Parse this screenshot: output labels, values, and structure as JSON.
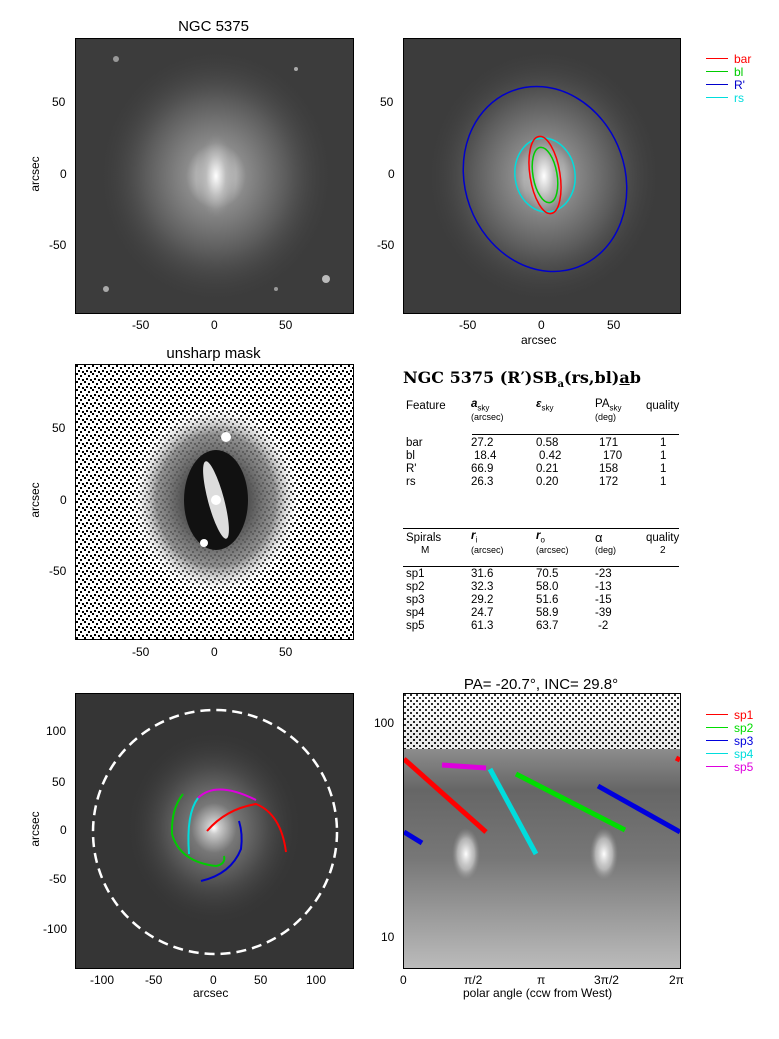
{
  "panels": {
    "top_left": {
      "title": "NGC 5375",
      "ylabel": "arcsec",
      "yticks": [
        "50",
        "0",
        "-50"
      ],
      "xticks": [
        "-50",
        "0",
        "50"
      ]
    },
    "top_right": {
      "xlabel": "arcsec",
      "yticks": [
        "50",
        "0",
        "-50"
      ],
      "xticks": [
        "-50",
        "0",
        "50"
      ],
      "legend": [
        {
          "label": "bar",
          "color": "#ff0000"
        },
        {
          "label": "bl",
          "color": "#00cc00"
        },
        {
          "label": "R'",
          "color": "#0000cc"
        },
        {
          "label": "rs",
          "color": "#00dddd"
        }
      ]
    },
    "mid_left": {
      "title": "unsharp mask",
      "ylabel": "arcsec",
      "yticks": [
        "50",
        "0",
        "-50"
      ],
      "xticks": [
        "-50",
        "0",
        "50"
      ]
    },
    "bottom_left": {
      "xlabel": "arcsec",
      "ylabel": "arcsec",
      "yticks": [
        "100",
        "50",
        "0",
        "-50",
        "-100"
      ],
      "xticks": [
        "-100",
        "-50",
        "0",
        "50",
        "100"
      ]
    },
    "bottom_right": {
      "title": "PA= -20.7°, INC=  29.8°",
      "xlabel": "polar angle (ccw from West)",
      "yticks": [
        "100",
        "10"
      ],
      "xticks": [
        "0",
        "π/2",
        "π",
        "3π/2",
        "2π"
      ],
      "legend": [
        {
          "label": "sp1",
          "color": "#ff0000"
        },
        {
          "label": "sp2",
          "color": "#00dd00"
        },
        {
          "label": "sp3",
          "color": "#0000dd"
        },
        {
          "label": "sp4",
          "color": "#00dddd"
        },
        {
          "label": "sp5",
          "color": "#dd00dd"
        }
      ]
    }
  },
  "classification": {
    "title": "NGC 5375  (R′)SB",
    "title_sub": "a",
    "title_rest": "(rs,bl)",
    "title_under": "a",
    "title_end": "b"
  },
  "features_table": {
    "headers": {
      "feature": "Feature",
      "a": "a",
      "a_sub": "sky",
      "a_unit": "(arcsec)",
      "eps": "ε",
      "eps_sub": "sky",
      "pa": "PA",
      "pa_sub": "sky",
      "pa_unit": "(deg)",
      "quality": "quality"
    },
    "rows": [
      {
        "feature": "bar",
        "a": "27.2",
        "eps": "0.58",
        "pa": "171",
        "q": "1"
      },
      {
        "feature": "bl",
        "a": "18.4",
        "eps": "0.42",
        "pa": "170",
        "q": "1"
      },
      {
        "feature": "R'",
        "a": "66.9",
        "eps": "0.21",
        "pa": "158",
        "q": "1"
      },
      {
        "feature": "rs",
        "a": "26.3",
        "eps": "0.20",
        "pa": "172",
        "q": "1"
      }
    ]
  },
  "spirals_table": {
    "headers": {
      "spirals": "Spirals",
      "m": "M",
      "ri": "r",
      "ri_sub": "i",
      "ri_unit": "(arcsec)",
      "ro": "r",
      "ro_sub": "o",
      "ro_unit": "(arcsec)",
      "alpha": "α",
      "alpha_unit": "(deg)",
      "quality": "quality",
      "quality_val": "2"
    },
    "rows": [
      {
        "name": "sp1",
        "ri": "31.6",
        "ro": "70.5",
        "alpha": "-23"
      },
      {
        "name": "sp2",
        "ri": "32.3",
        "ro": "58.0",
        "alpha": "-13"
      },
      {
        "name": "sp3",
        "ri": "29.2",
        "ro": "51.6",
        "alpha": "-15"
      },
      {
        "name": "sp4",
        "ri": "24.7",
        "ro": "58.9",
        "alpha": "-39"
      },
      {
        "name": "sp5",
        "ri": "61.3",
        "ro": "63.7",
        "alpha": "-2"
      }
    ]
  }
}
